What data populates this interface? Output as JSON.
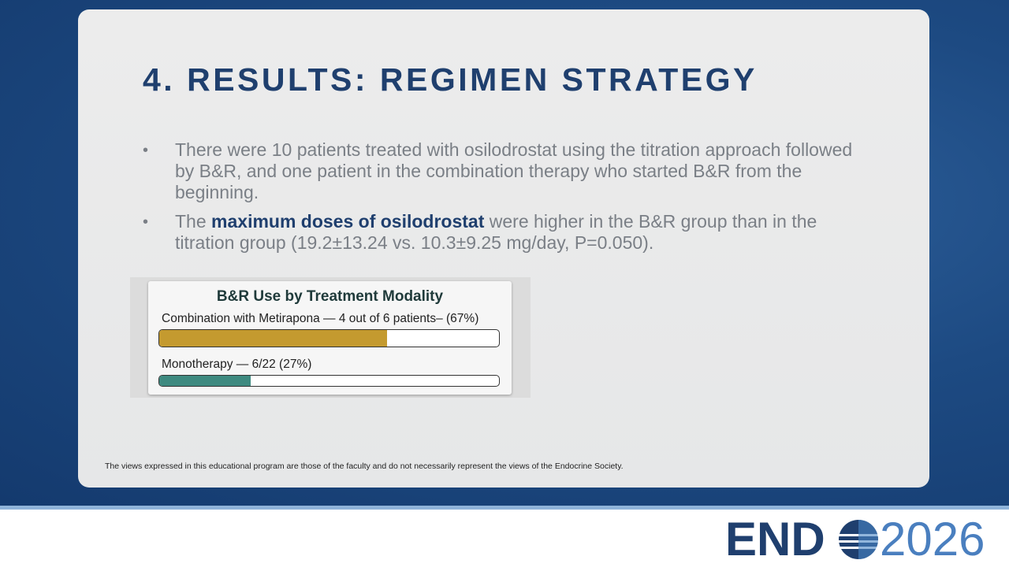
{
  "header": {
    "title": "4. RESULTS: REGIMEN STRATEGY"
  },
  "bullets": [
    [
      "There were 10 patients treated with osilodrostat using the titration approach followed by B&R,  and one patient in the combination therapy who started B&R from the beginning."
    ],
    [
      "The ",
      "maximum doses of osilodrostat",
      " were higher in the B&R group than in the titration group (19.2±13.24 vs. 10.3±9.25 mg/day, P=0.050)."
    ]
  ],
  "chart_data": {
    "type": "progress",
    "title": "B&R Use by Treatment Modality",
    "categories": [
      "Combination with Metirapona — 4 out of 6 patients– (67%)",
      "Monotherapy — 6/22 (27%)"
    ],
    "values": [
      67,
      27
    ],
    "colors": [
      "#c49a2f",
      "#3e8a80"
    ],
    "xlim": [
      0,
      100
    ]
  },
  "footer": {
    "disclaimer": "The views expressed in this educational program are those of the faculty and do not necessarily represent the views of the Endocrine Society.",
    "logo": [
      "END",
      "2026"
    ]
  }
}
